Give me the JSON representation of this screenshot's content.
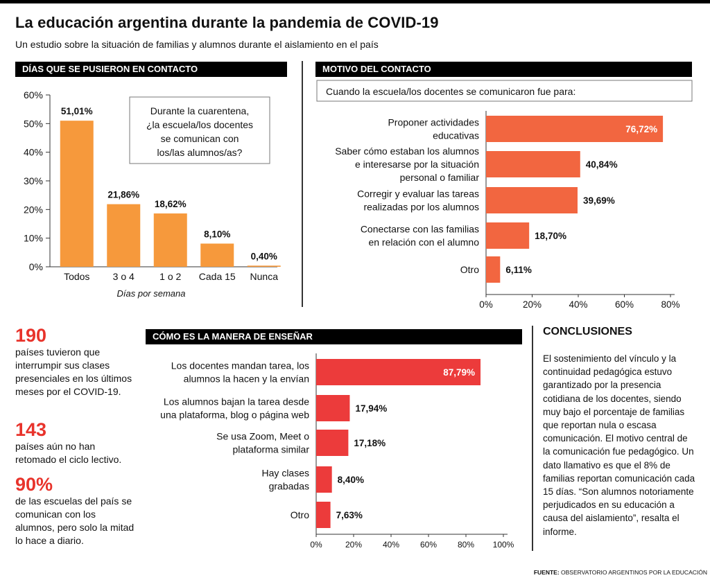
{
  "header": {
    "title": "La educación argentina durante la pandemia de COVID-19",
    "subtitle": "Un estudio sobre la situación de familias y alumnos durante el aislamiento en el país"
  },
  "chart_data": [
    {
      "type": "bar",
      "title": "DÍAS QUE SE PUSIERON EN CONTACTO",
      "question": "Durante la cuarentena, ¿la escuela/los docentes se comunican con los/las alumnos/as?",
      "xlabel": "Días por semana",
      "categories": [
        "Todos",
        "3 o 4",
        "1 o 2",
        "Cada 15",
        "Nunca"
      ],
      "values": [
        51.01,
        21.86,
        18.62,
        8.1,
        0.4
      ],
      "value_labels": [
        "51,01%",
        "21,86%",
        "18,62%",
        "8,10%",
        "0,40%"
      ],
      "ylim": [
        0,
        60
      ],
      "yticks": [
        "0%",
        "10%",
        "20%",
        "30%",
        "40%",
        "50%",
        "60%"
      ],
      "color": "#f6993c"
    },
    {
      "type": "bar",
      "orientation": "horizontal",
      "title": "MOTIVO DEL CONTACTO",
      "question": "Cuando la escuela/los docentes se comunicaron fue para:",
      "categories": [
        [
          "Proponer actividades",
          "educativas"
        ],
        [
          "Saber cómo estaban los alumnos",
          "e interesarse por la situación",
          "personal o familiar"
        ],
        [
          "Corregir y evaluar las tareas",
          "realizadas por los alumnos"
        ],
        [
          "Conectarse con las familias",
          "en relación con el alumno"
        ],
        [
          "Otro"
        ]
      ],
      "values": [
        76.72,
        40.84,
        39.69,
        18.7,
        6.11
      ],
      "value_labels": [
        "76,72%",
        "40,84%",
        "39,69%",
        "18,70%",
        "6,11%"
      ],
      "xlim": [
        0,
        80
      ],
      "xticks": [
        "0%",
        "20%",
        "40%",
        "60%",
        "80%"
      ],
      "color": "#f26640"
    },
    {
      "type": "bar",
      "orientation": "horizontal",
      "title": "CÓMO ES LA MANERA DE ENSEÑAR",
      "categories": [
        [
          "Los docentes mandan tarea, los",
          "alumnos la hacen y la envían"
        ],
        [
          "Los alumnos bajan la tarea desde",
          "una plataforma, blog o página web"
        ],
        [
          "Se usa Zoom, Meet o",
          "plataforma similar"
        ],
        [
          "Hay clases",
          "grabadas"
        ],
        [
          "Otro"
        ]
      ],
      "values": [
        87.79,
        17.94,
        17.18,
        8.4,
        7.63
      ],
      "value_labels": [
        "87,79%",
        "17,94%",
        "17,18%",
        "8,40%",
        "7,63%"
      ],
      "xlim": [
        0,
        100
      ],
      "xticks": [
        "0%",
        "20%",
        "40%",
        "60%",
        "80%",
        "100%"
      ],
      "color": "#ec3b3b"
    }
  ],
  "stats": [
    {
      "number": "190",
      "text": "países tuvieron que interrumpir sus clases presenciales en los últimos meses por el COVID-19."
    },
    {
      "number": "143",
      "text": "países aún no han retomado el ciclo lectivo."
    },
    {
      "number": "90%",
      "text": "de las escuelas del país se comunican con los alumnos, pero solo la mitad lo hace a diario."
    }
  ],
  "conclusions": {
    "title": "CONCLUSIONES",
    "text": "El sostenimiento del vínculo y la continuidad pedagógica estuvo garantizado por la presencia cotidiana de los docentes, siendo muy bajo el porcentaje de familias que reportan nula o escasa comunicación. El motivo central de la comunicación fue pedagógico. Un dato llamativo es que el 8% de familias reportan comunicación cada 15 días. “Son alumnos notoriamente perjudicados en su educación a causa del aislamiento”, resalta el informe."
  },
  "source": {
    "label": "FUENTE:",
    "text": " OBSERVATORIO ARGENTINOS POR LA EDUCACIÓN"
  }
}
